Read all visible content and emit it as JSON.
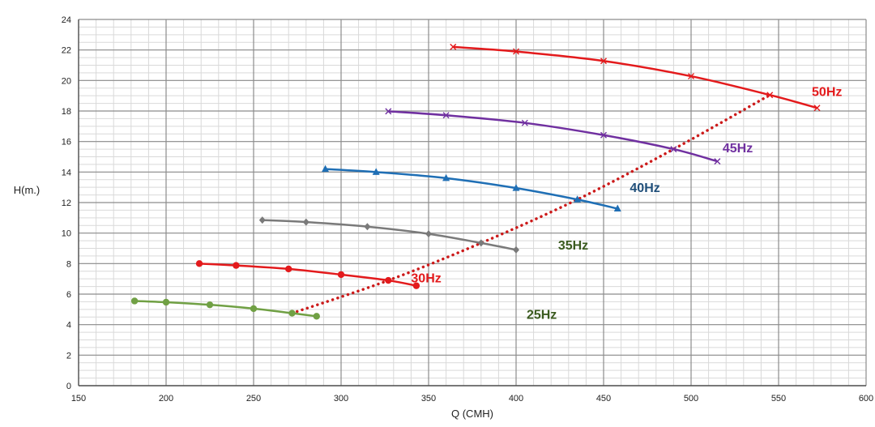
{
  "chart_data": {
    "type": "line",
    "xlabel": "Q (CMH)",
    "ylabel": "H(m.)",
    "xlim": [
      150,
      600
    ],
    "ylim": [
      0,
      24
    ],
    "x_ticks": [
      150,
      200,
      250,
      300,
      350,
      400,
      450,
      500,
      550,
      600
    ],
    "y_ticks": [
      0,
      2,
      4,
      6,
      8,
      10,
      12,
      14,
      16,
      18,
      20,
      22,
      24
    ],
    "grid": true,
    "series": [
      {
        "name": "25Hz",
        "color": "#70a044",
        "marker": "circle",
        "x": [
          182,
          200,
          225,
          250,
          272,
          286
        ],
        "y": [
          5.55,
          5.47,
          5.3,
          5.05,
          4.75,
          4.55
        ]
      },
      {
        "name": "30Hz",
        "color": "#e31a1c",
        "marker": "circle",
        "x": [
          219,
          240,
          270,
          300,
          327,
          343
        ],
        "y": [
          8.0,
          7.88,
          7.65,
          7.28,
          6.9,
          6.55
        ]
      },
      {
        "name": "35Hz",
        "color": "#7a7a7a",
        "marker": "diamond",
        "x": [
          255,
          280,
          315,
          350,
          380,
          400
        ],
        "y": [
          10.85,
          10.72,
          10.42,
          9.95,
          9.35,
          8.9
        ]
      },
      {
        "name": "40Hz",
        "color": "#1f6fb5",
        "marker": "triangle",
        "x": [
          291,
          320,
          360,
          400,
          435,
          458
        ],
        "y": [
          14.2,
          14.0,
          13.6,
          12.95,
          12.2,
          11.6
        ]
      },
      {
        "name": "45Hz",
        "color": "#7030a0",
        "marker": "x",
        "x": [
          327,
          360,
          405,
          450,
          490,
          515
        ],
        "y": [
          17.98,
          17.72,
          17.22,
          16.42,
          15.5,
          14.7
        ]
      },
      {
        "name": "50Hz",
        "color": "#e31a1c",
        "marker": "x",
        "x": [
          364,
          400,
          450,
          500,
          545,
          572
        ],
        "y": [
          22.2,
          21.9,
          21.28,
          20.28,
          19.05,
          18.2
        ]
      }
    ],
    "system_curve": {
      "color": "#cc1a1a",
      "style": "dotted",
      "x": [
        272,
        327,
        380,
        435,
        490,
        545
      ],
      "y": [
        4.75,
        6.9,
        9.35,
        12.2,
        15.5,
        19.05
      ]
    },
    "series_labels": [
      {
        "text": "25Hz",
        "color": "#3a5a1e",
        "x": 406,
        "y": 4.7
      },
      {
        "text": "30Hz",
        "color": "#e31a1c",
        "x": 340,
        "y": 7.1
      },
      {
        "text": "35Hz",
        "color": "#3a5a1e",
        "x": 424,
        "y": 9.25
      },
      {
        "text": "40Hz",
        "color": "#1f4e79",
        "x": 465,
        "y": 13.0
      },
      {
        "text": "45Hz",
        "color": "#7030a0",
        "x": 518,
        "y": 15.6
      },
      {
        "text": "50Hz",
        "color": "#e31a1c",
        "x": 569,
        "y": 19.3
      }
    ]
  }
}
